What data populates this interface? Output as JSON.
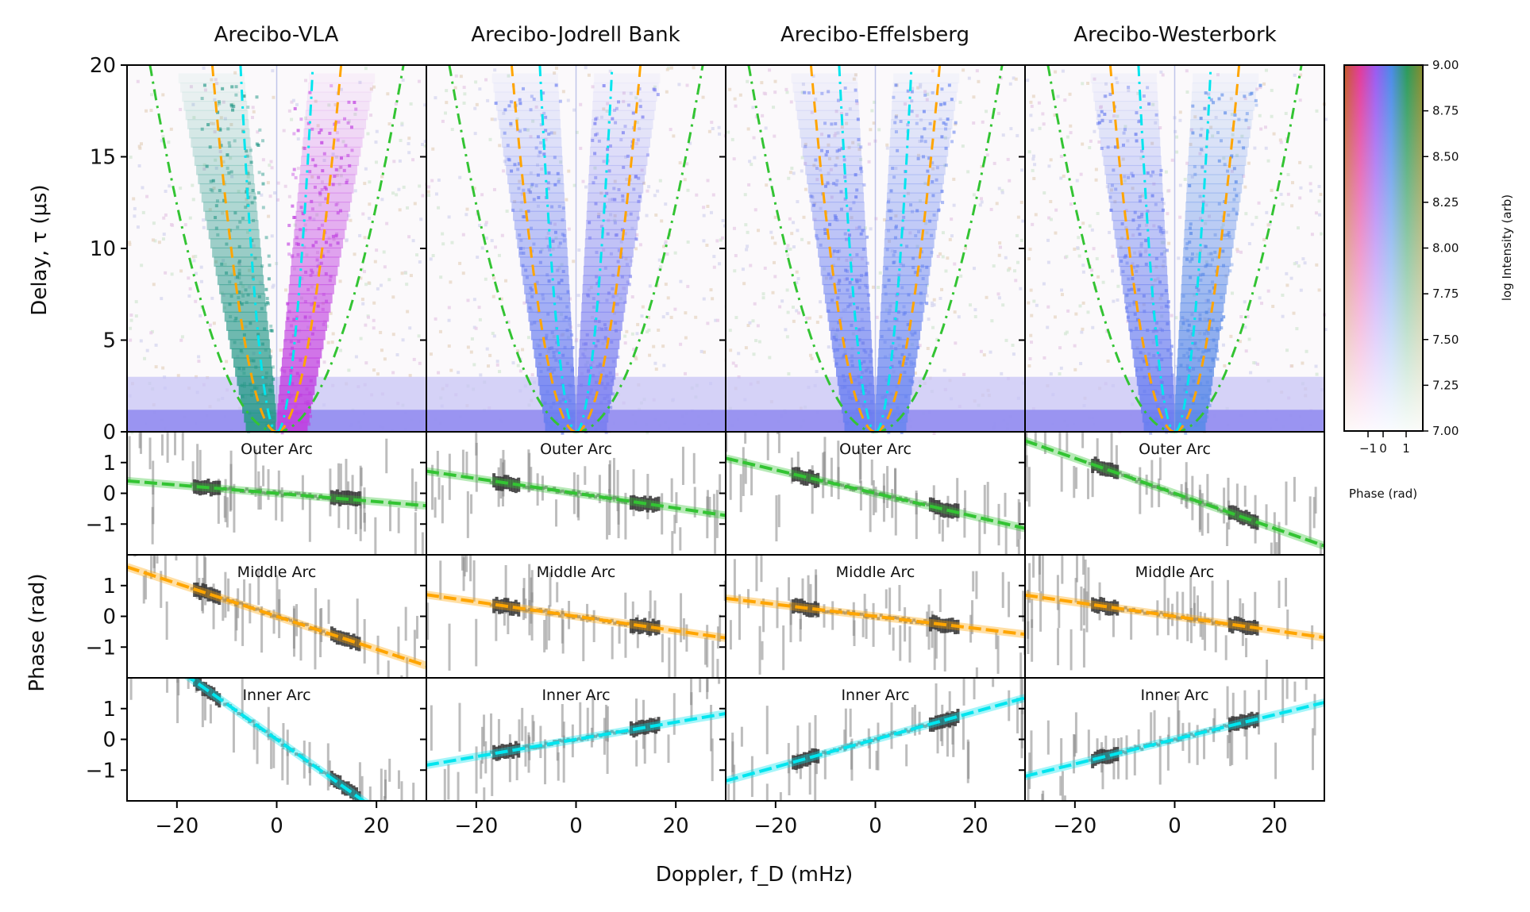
{
  "figure": {
    "xlabel": "Doppler, f_D (mHz)",
    "ylabel_top": "Delay, τ (μs)",
    "ylabel_bottom": "Phase (rad)",
    "colorbar": {
      "label": "log Intensity (arb)",
      "ticks": [
        "9.00",
        "8.75",
        "8.50",
        "8.25",
        "8.00",
        "7.75",
        "7.50",
        "7.25",
        "7.00"
      ],
      "phase_label": "Phase (rad)",
      "phase_ticks": [
        "−1",
        "0",
        "1"
      ]
    }
  },
  "colors": {
    "outer": "#33c433",
    "middle": "#ffa500",
    "inner": "#00e5ee",
    "points": "#333333"
  },
  "chart_data": {
    "type": "heatmap",
    "panels": [
      "Arecibo-VLA",
      "Arecibo-Jodrell Bank",
      "Arecibo-Effelsberg",
      "Arecibo-Westerbork"
    ],
    "x": {
      "label": "Doppler, f_D (mHz)",
      "lim": [
        -30,
        30
      ],
      "ticks": [
        -20,
        0,
        20
      ],
      "tick_labels": [
        "−20",
        "0",
        "20"
      ]
    },
    "y_delay": {
      "label": "Delay, τ (μs)",
      "lim": [
        0,
        20
      ],
      "ticks": [
        0,
        5,
        10,
        15,
        20
      ]
    },
    "y_phase": {
      "label": "Phase (rad)",
      "lim": [
        -2,
        2
      ],
      "ticks": [
        1,
        0,
        -1
      ],
      "tick_labels": [
        "1",
        "0",
        "−1"
      ]
    },
    "arcs": [
      {
        "name": "Outer Arc",
        "label": "Outer Arc",
        "curvature": 0.031,
        "style": "dashdot",
        "color": "#33c433"
      },
      {
        "name": "Middle Arc",
        "label": "Middle Arc",
        "curvature": 0.12,
        "style": "dashed",
        "color": "#ffa500"
      },
      {
        "name": "Inner Arc",
        "label": "Inner Arc",
        "curvature": 0.38,
        "style": "dashdot",
        "color": "#00e5ee"
      }
    ],
    "phase_fits": [
      {
        "baseline": "Arecibo-VLA",
        "outer_slope": -0.0135,
        "middle_slope": -0.0535,
        "inner_slope": -0.115
      },
      {
        "baseline": "Arecibo-Jodrell Bank",
        "outer_slope": -0.024,
        "middle_slope": -0.0235,
        "inner_slope": 0.028
      },
      {
        "baseline": "Arecibo-Effelsberg",
        "outer_slope": -0.038,
        "middle_slope": -0.0195,
        "inner_slope": 0.045
      },
      {
        "baseline": "Arecibo-Westerbork",
        "outer_slope": -0.057,
        "middle_slope": -0.023,
        "inner_slope": 0.04
      }
    ],
    "colorbar_range": [
      7.0,
      9.0
    ],
    "phase_range": [
      -1.5,
      1.5
    ]
  }
}
